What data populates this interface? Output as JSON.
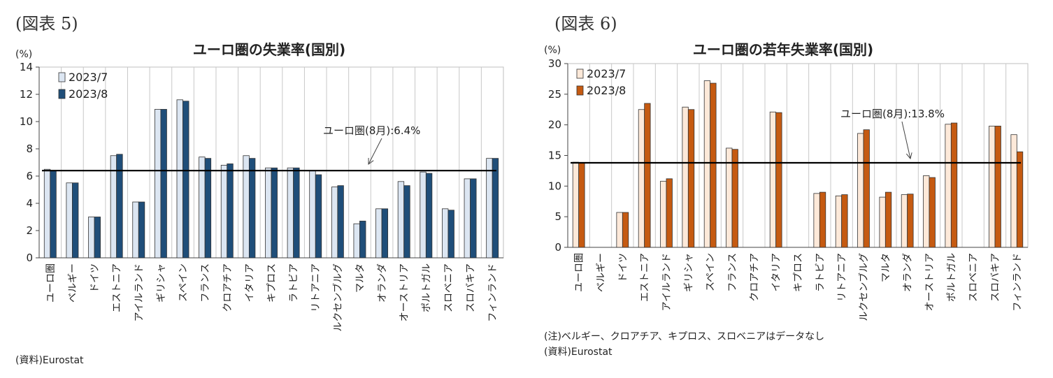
{
  "chart_data": [
    {
      "type": "bar",
      "figure_label": "(図表 5)",
      "title": "ユーロ圏の失業率(国別)",
      "unit": "(%)",
      "ylim": [
        0,
        14
      ],
      "yticks": [
        0,
        2,
        4,
        6,
        8,
        10,
        12,
        14
      ],
      "grid": true,
      "legend_position": "top-left",
      "categories": [
        "ユーロ圏",
        "ベルギー",
        "ドイツ",
        "エストニア",
        "アイルランド",
        "ギリシャ",
        "スペイン",
        "フランス",
        "クロアチア",
        "イタリア",
        "キプロス",
        "ラトビア",
        "リトアニア",
        "ルクセンブルグ",
        "マルタ",
        "オランダ",
        "オーストリア",
        "ポルトガル",
        "スロベニア",
        "スロバキア",
        "フィンランド"
      ],
      "series": [
        {
          "name": "2023/7",
          "color": "#dce6f2",
          "values": [
            6.5,
            5.5,
            3.0,
            7.5,
            4.1,
            10.9,
            11.6,
            7.4,
            6.8,
            7.5,
            6.6,
            6.6,
            6.4,
            5.2,
            2.5,
            3.6,
            5.6,
            6.3,
            3.6,
            5.8,
            7.3
          ]
        },
        {
          "name": "2023/8",
          "color": "#1f4e79",
          "values": [
            6.4,
            5.5,
            3.0,
            7.6,
            4.1,
            10.9,
            11.5,
            7.3,
            6.9,
            7.3,
            6.6,
            6.6,
            6.1,
            5.3,
            2.7,
            3.6,
            5.3,
            6.2,
            3.5,
            5.8,
            7.3
          ]
        }
      ],
      "reference_line": {
        "value": 6.4,
        "label": "ユーロ圏(8月):6.4%"
      },
      "source": "(資料)Eurostat"
    },
    {
      "type": "bar",
      "figure_label": "(図表 6)",
      "title": "ユーロ圏の若年失業率(国別)",
      "unit": "(%)",
      "ylim": [
        0,
        30
      ],
      "yticks": [
        0,
        5,
        10,
        15,
        20,
        25,
        30
      ],
      "grid": true,
      "legend_position": "top-left",
      "categories": [
        "ユーロ圏",
        "ベルギー",
        "ドイツ",
        "エストニア",
        "アイルランド",
        "ギリシャ",
        "スペイン",
        "フランス",
        "クロアチア",
        "イタリア",
        "キプロス",
        "ラトビア",
        "リトアニア",
        "ルクセンブルグ",
        "マルタ",
        "オランダ",
        "オーストリア",
        "ポルトガル",
        "スロベニア",
        "スロバキア",
        "フィンランド"
      ],
      "series": [
        {
          "name": "2023/7",
          "color": "#fde9d9",
          "values": [
            13.9,
            null,
            5.7,
            22.5,
            10.8,
            22.9,
            27.2,
            16.2,
            null,
            22.1,
            null,
            8.8,
            8.4,
            18.6,
            8.2,
            8.6,
            11.7,
            20.1,
            null,
            19.8,
            18.4
          ]
        },
        {
          "name": "2023/8",
          "color": "#c55a11",
          "values": [
            13.8,
            null,
            5.7,
            23.5,
            11.2,
            22.5,
            26.8,
            16.0,
            null,
            22.0,
            null,
            9.0,
            8.6,
            19.2,
            9.0,
            8.7,
            11.4,
            20.3,
            null,
            19.8,
            15.6
          ]
        }
      ],
      "reference_line": {
        "value": 13.8,
        "label": "ユーロ圏(8月):13.8%"
      },
      "note": "(注)ベルギー、クロアチア、キプロス、スロベニアはデータなし",
      "source": "(資料)Eurostat"
    }
  ]
}
